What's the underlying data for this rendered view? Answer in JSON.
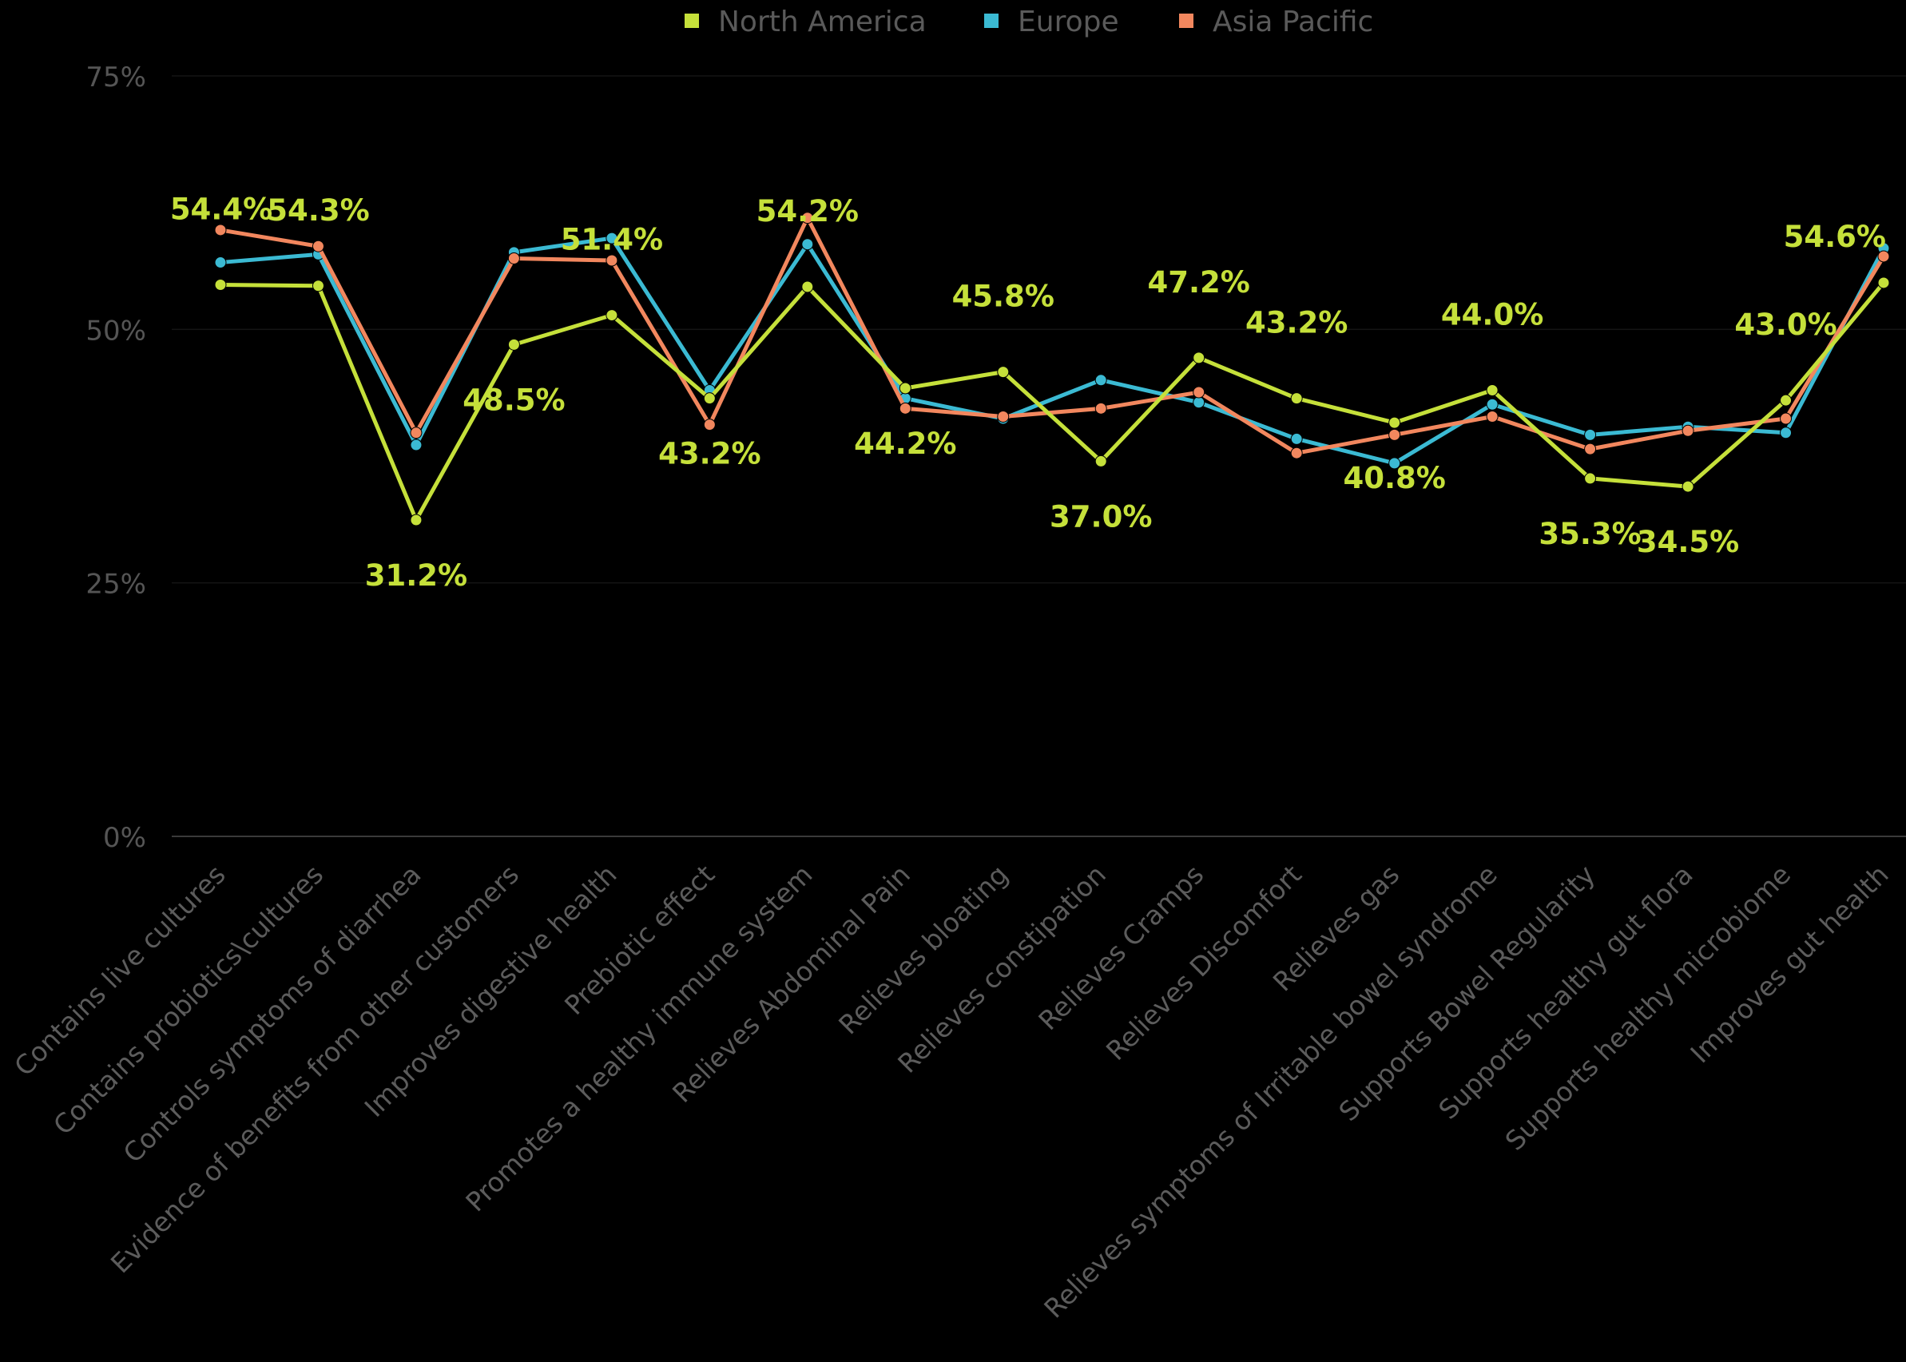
{
  "chart_data": {
    "type": "line",
    "title": "",
    "xlabel": "",
    "ylabel": "",
    "ylim": [
      0,
      75
    ],
    "y_ticks": [
      "0%",
      "25%",
      "50%",
      "75%"
    ],
    "grid": "horizontal",
    "legend_position": "top-center",
    "categories": [
      "Contains live cultures",
      "Contains probiotics\\cultures",
      "Controls symptoms of diarrhea",
      "Evidence of benefits from other customers",
      "Improves digestive health",
      "Prebiotic effect",
      "Promotes a healthy immune system",
      "Relieves Abdominal Pain",
      "Relieves bloating",
      "Relieves constipation",
      "Relieves Cramps",
      "Relieves Discomfort",
      "Relieves gas",
      "Relieves symptoms of Irritable bowel syndrome",
      "Supports Bowel Regularity",
      "Supports healthy gut flora",
      "Supports healthy microbiome",
      "Improves gut health"
    ],
    "series": [
      {
        "name": "North America",
        "color": "#c5e03a",
        "values": [
          54.4,
          54.3,
          31.2,
          48.5,
          51.4,
          43.2,
          54.2,
          44.2,
          45.8,
          37.0,
          47.2,
          43.2,
          40.8,
          44.0,
          35.3,
          34.5,
          43.0,
          54.6
        ],
        "data_labels": [
          "54.4%",
          "54.3%",
          "31.2%",
          "48.5%",
          "51.4%",
          "43.2%",
          "54.2%",
          "44.2%",
          "45.8%",
          "37.0%",
          "47.2%",
          "43.2%",
          "40.8%",
          "44.0%",
          "35.3%",
          "34.5%",
          "43.0%",
          "54.6%"
        ]
      },
      {
        "name": "Europe",
        "color": "#3bbad3",
        "values": [
          56.6,
          57.4,
          38.6,
          57.6,
          59.0,
          44.0,
          58.4,
          43.2,
          41.2,
          45.0,
          42.8,
          39.2,
          36.8,
          42.6,
          39.6,
          40.4,
          39.8,
          58.0
        ]
      },
      {
        "name": "Asia Pacific",
        "color": "#f2875e",
        "values": [
          59.8,
          58.2,
          39.8,
          57.0,
          56.8,
          40.6,
          61.0,
          42.2,
          41.4,
          42.2,
          43.8,
          37.8,
          39.6,
          41.4,
          38.2,
          40.0,
          41.2,
          57.2
        ]
      }
    ]
  }
}
